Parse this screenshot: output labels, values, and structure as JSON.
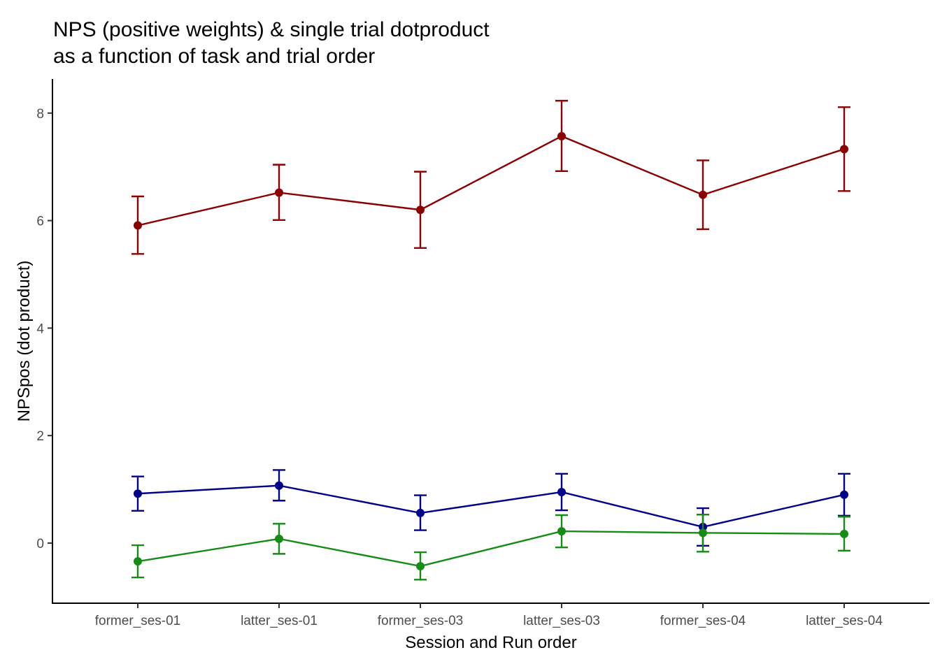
{
  "chart_data": {
    "type": "line",
    "title_lines": [
      "NPS (positive weights) & single trial dotproduct",
      "as a function of task and trial order"
    ],
    "xlabel": "Session and Run order",
    "ylabel": "NPSpos (dot product)",
    "categories": [
      "former_ses-01",
      "latter_ses-01",
      "former_ses-03",
      "latter_ses-03",
      "former_ses-04",
      "latter_ses-04"
    ],
    "ylim": [
      -1.1,
      8.65
    ],
    "yticks": [
      0,
      2,
      4,
      6,
      8
    ],
    "grid": false,
    "legend": "none",
    "series": [
      {
        "color": "#8B0000",
        "values": [
          5.91,
          6.52,
          6.2,
          7.57,
          6.48,
          7.33
        ],
        "err_low": [
          5.38,
          6.01,
          5.49,
          6.92,
          5.84,
          6.55
        ],
        "err_high": [
          6.45,
          7.04,
          6.91,
          8.23,
          7.12,
          8.11
        ]
      },
      {
        "color": "#00008B",
        "values": [
          0.92,
          1.07,
          0.56,
          0.95,
          0.3,
          0.9
        ],
        "err_low": [
          0.6,
          0.79,
          0.24,
          0.61,
          -0.05,
          0.51
        ],
        "err_high": [
          1.24,
          1.36,
          0.89,
          1.29,
          0.65,
          1.29
        ]
      },
      {
        "color": "#168C16",
        "values": [
          -0.34,
          0.08,
          -0.43,
          0.22,
          0.19,
          0.17
        ],
        "err_low": [
          -0.64,
          -0.2,
          -0.68,
          -0.08,
          -0.16,
          -0.14
        ],
        "err_high": [
          -0.04,
          0.36,
          -0.17,
          0.52,
          0.53,
          0.49
        ]
      }
    ]
  }
}
